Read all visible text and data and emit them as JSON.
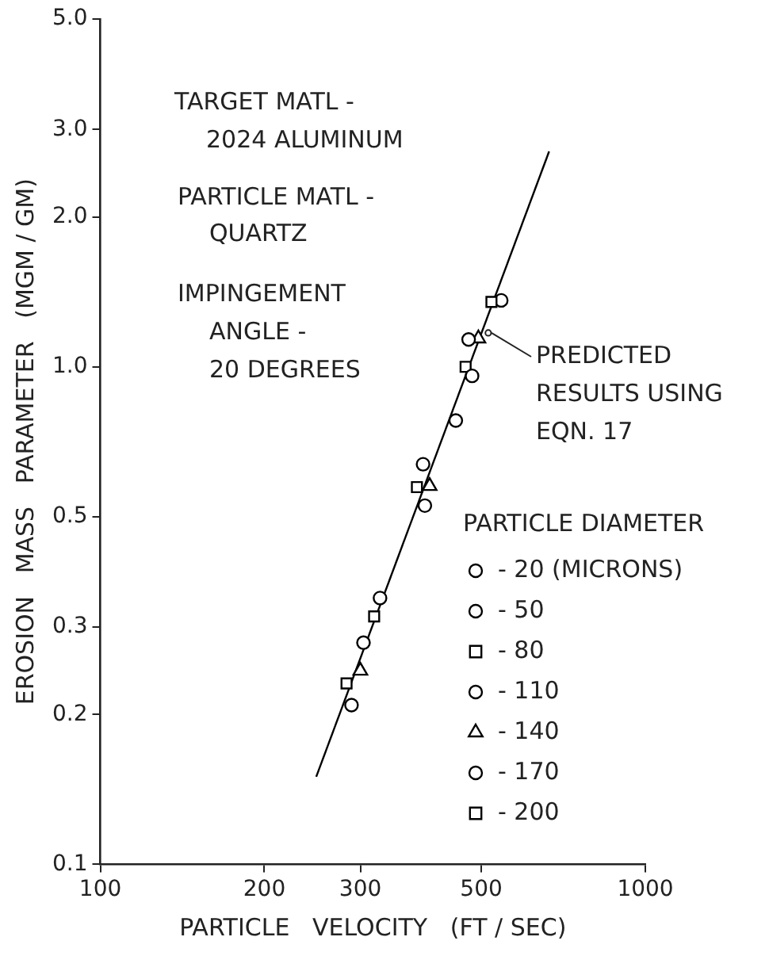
{
  "chart_data": {
    "type": "scatter",
    "xlabel": "PARTICLE   VELOCITY   (FT / SEC)",
    "ylabel": "EROSION   MASS   PARAMETER   (MGM / GM)",
    "legend_title": "PARTICLE DIAMETER",
    "log": "xy",
    "grid": false,
    "legend": "right",
    "xlim": [
      100,
      1000
    ],
    "xticks": [
      100,
      200,
      300,
      500,
      1000
    ],
    "ylim": [
      0.1,
      5
    ],
    "yticks": [
      {
        "value": 0.1,
        "label": "0.1"
      },
      0.2,
      0.3,
      0.5,
      {
        "value": 1,
        "label": "1.0"
      },
      {
        "value": 2,
        "label": "2.0"
      },
      {
        "value": 3,
        "label": "3.0"
      },
      {
        "value": 5,
        "label": "5.0"
      }
    ],
    "annotations": [
      "TARGET MATL -",
      "2024 ALUMINUM",
      "PARTICLE MATL -",
      "QUARTZ",
      "IMPINGEMENT",
      "ANGLE -",
      "20 DEGREES",
      {
        "text": "PREDICTED RESULTS USING EQN. 17",
        "x": 515,
        "y": 1.17
      }
    ],
    "series": [
      {
        "name": "- 20 (MICRONS)",
        "color": "#000000",
        "marker": "circle",
        "x": [
          394
        ],
        "values": [
          0.526
        ]
      },
      {
        "name": "- 50",
        "color": "#000000",
        "marker": "circle",
        "x": [
          449
        ],
        "values": [
          0.78
        ]
      },
      {
        "name": "- 80",
        "color": "#000000",
        "marker": "square",
        "x": [
          522,
          318
        ],
        "values": [
          1.35,
          0.315
        ]
      },
      {
        "name": "- 110",
        "color": "#000000",
        "marker": "circle",
        "x": [
          544,
          474,
          391,
          326,
          304
        ],
        "values": [
          1.36,
          1.135,
          0.637,
          0.343,
          0.279
        ]
      },
      {
        "name": "- 140",
        "color": "#000000",
        "marker": "triangle",
        "x": [
          494,
          402,
          300
        ],
        "values": [
          1.14,
          0.576,
          0.245
        ]
      },
      {
        "name": "- 170",
        "color": "#000000",
        "marker": "circle",
        "x": [
          481,
          289
        ],
        "values": [
          0.959,
          0.209
        ]
      },
      {
        "name": "- 200",
        "color": "#000000",
        "marker": "square",
        "x": [
          468,
          381,
          283
        ],
        "values": [
          1.0,
          0.573,
          0.231
        ]
      },
      {
        "type": "line",
        "color": "#000000",
        "marker": "none",
        "x": [
          249,
          666
        ],
        "values": [
          0.15,
          2.71
        ]
      }
    ]
  }
}
